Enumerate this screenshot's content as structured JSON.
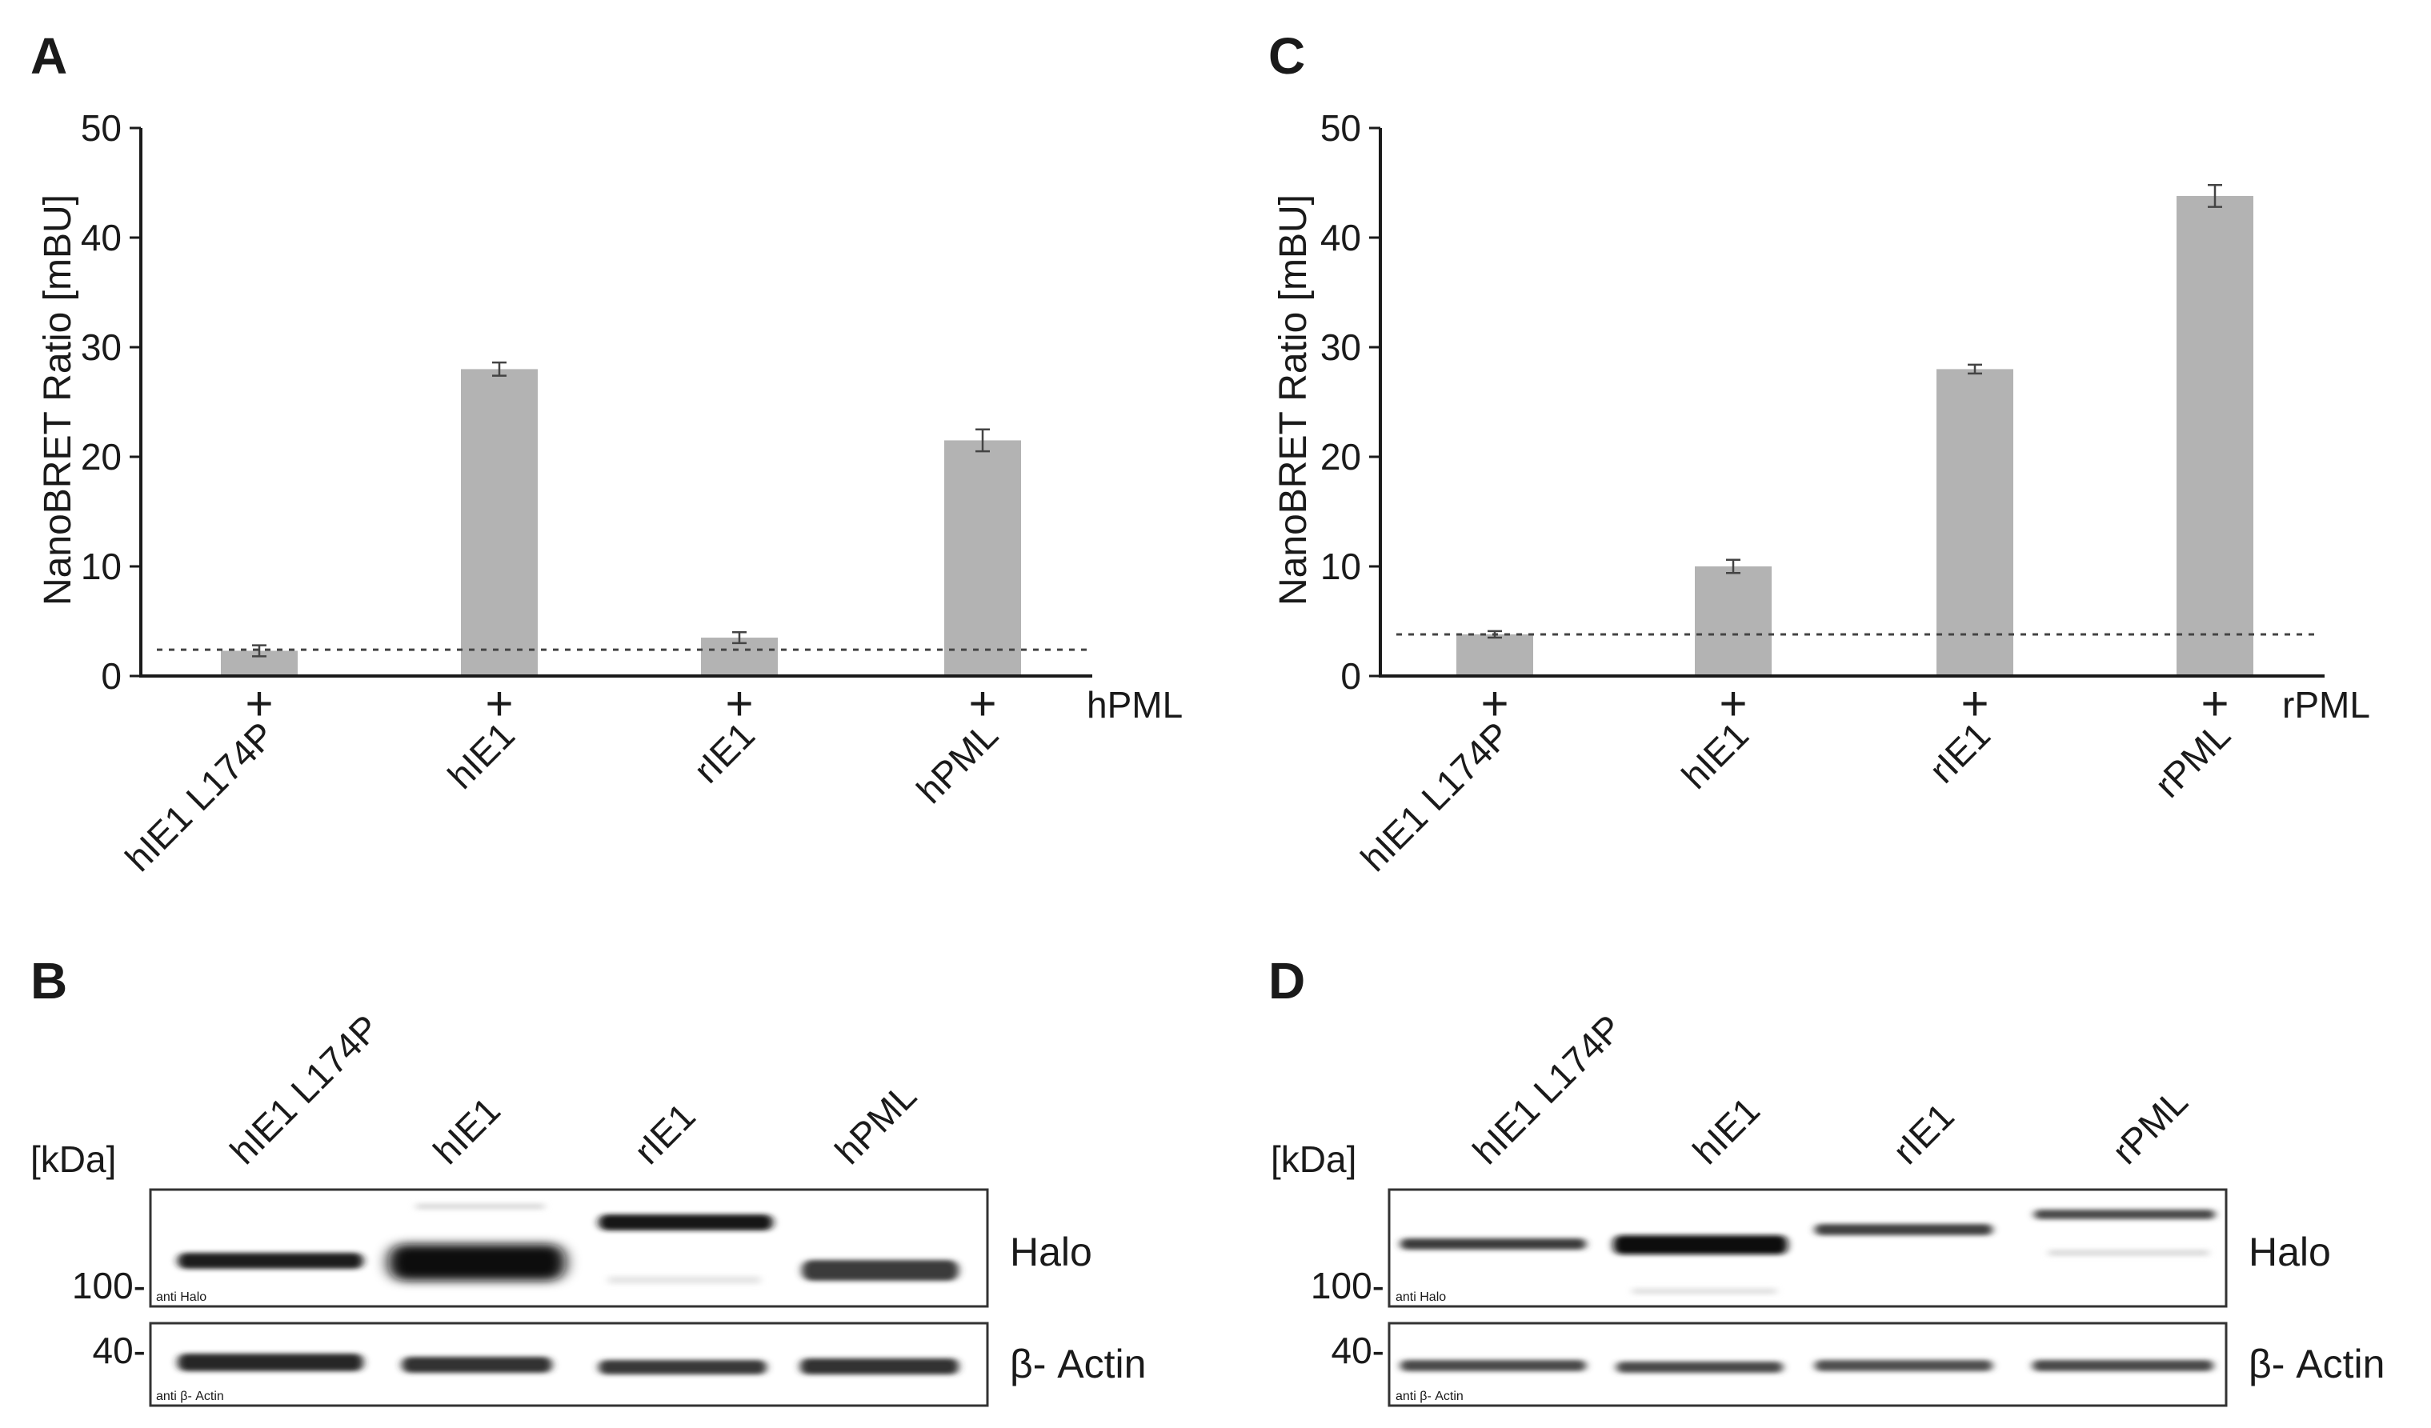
{
  "chart_data": [
    {
      "panel": "A",
      "type": "bar",
      "ylabel": "NanoBRET Ratio [mBU]",
      "ylim": [
        0,
        50
      ],
      "yticks": [
        0,
        10,
        20,
        30,
        40,
        50
      ],
      "categories": [
        "hIE1 L174P",
        "hIE1",
        "rIE1",
        "hPML"
      ],
      "values": [
        2.3,
        28.0,
        3.5,
        21.5
      ],
      "errors": [
        0.5,
        0.6,
        0.5,
        1.0
      ],
      "plus_label": "+",
      "row_label": "hPML",
      "baseline": 2.4,
      "bar_color": "#b3b3b3"
    },
    {
      "panel": "C",
      "type": "bar",
      "ylabel": "NanoBRET Ratio [mBU]",
      "ylim": [
        0,
        50
      ],
      "yticks": [
        0,
        10,
        20,
        30,
        40,
        50
      ],
      "categories": [
        "hIE1 L174P",
        "hIE1",
        "rIE1",
        "rPML"
      ],
      "values": [
        3.8,
        10.0,
        28.0,
        43.8
      ],
      "errors": [
        0.3,
        0.6,
        0.4,
        1.0
      ],
      "plus_label": "+",
      "row_label": "rPML",
      "baseline": 3.8,
      "bar_color": "#b3b3b3"
    }
  ],
  "blots": [
    {
      "panel": "B",
      "unit_label": "[kDa]",
      "lanes": [
        "hIE1 L174P",
        "hIE1",
        "rIE1",
        "hPML"
      ],
      "marker_halo": "100-",
      "marker_actin": "40-",
      "halo_label": "Halo",
      "actin_label": "β- Actin",
      "halo_antibody": "anti Halo",
      "actin_antibody": "anti β- Actin"
    },
    {
      "panel": "D",
      "unit_label": "[kDa]",
      "lanes": [
        "hIE1 L174P",
        "hIE1",
        "rIE1",
        "rPML"
      ],
      "marker_halo": "100-",
      "marker_actin": "40-",
      "halo_label": "Halo",
      "actin_label": "β- Actin",
      "halo_antibody": "anti Halo",
      "actin_antibody": "anti β- Actin"
    }
  ]
}
